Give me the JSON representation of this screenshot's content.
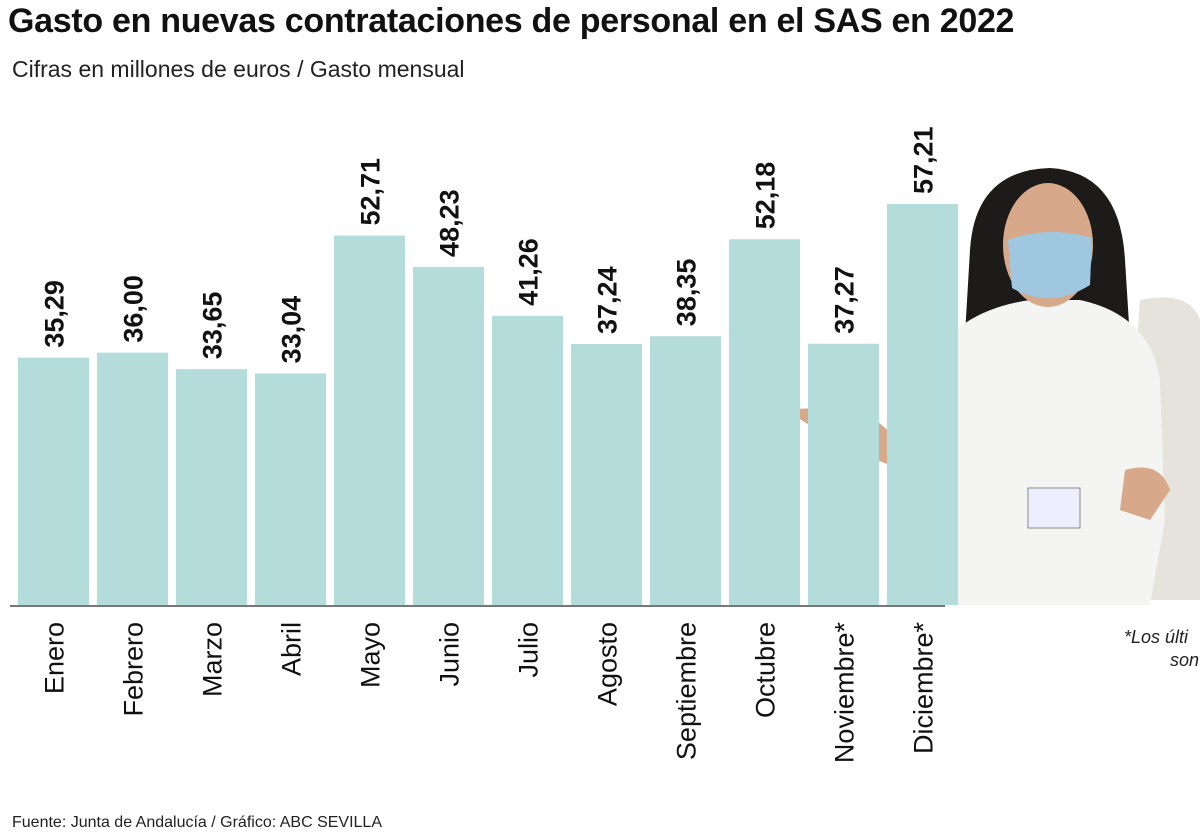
{
  "chart_data": {
    "type": "bar",
    "title": "Gasto en nuevas contrataciones de personal en el SAS en 2022",
    "subtitle": "Cifras en millones de euros / Gasto mensual",
    "categories": [
      "Enero",
      "Febrero",
      "Marzo",
      "Abril",
      "Mayo",
      "Junio",
      "Julio",
      "Agosto",
      "Septiembre",
      "Octubre",
      "Noviembre*",
      "Diciembre*"
    ],
    "values": [
      35.29,
      36.0,
      33.65,
      33.04,
      52.71,
      48.23,
      41.26,
      37.24,
      38.35,
      52.18,
      37.27,
      57.21
    ],
    "value_labels": [
      "35,29",
      "36,00",
      "33,65",
      "33,04",
      "52,71",
      "48,23",
      "41,26",
      "37,24",
      "38,35",
      "52,18",
      "37,27",
      "57,21"
    ],
    "ylim": [
      0,
      57.21
    ],
    "grid": false,
    "bar_color": "#b3dcdb",
    "source": "Fuente: Junta de Andalucía / Gráfico: ABC SEVILLA",
    "note_line1": "*Los últi",
    "note_line2": "son"
  }
}
